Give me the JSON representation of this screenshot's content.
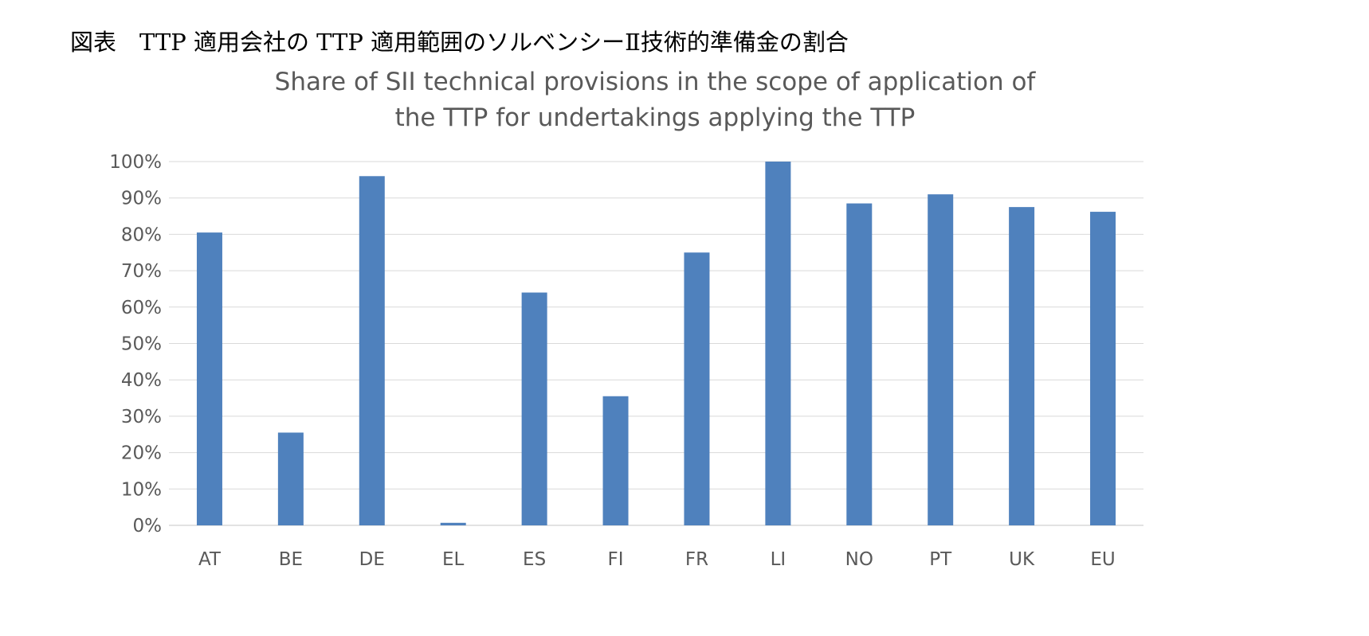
{
  "figure_caption": "図表　TTP 適用会社の TTP 適用範囲のソルベンシーⅡ技術的準備金の割合",
  "chart_data": {
    "type": "bar",
    "title": "Share of SII technical provisions in the scope of application of the TTP for undertakings applying the TTP",
    "title_lines": [
      "Share of SII technical provisions in the scope of application of",
      "the TTP for undertakings applying the TTP"
    ],
    "categories": [
      "AT",
      "BE",
      "DE",
      "EL",
      "ES",
      "FI",
      "FR",
      "LI",
      "NO",
      "PT",
      "UK",
      "EU"
    ],
    "values": [
      0.805,
      0.255,
      0.96,
      0.007,
      0.64,
      0.355,
      0.75,
      1.0,
      0.885,
      0.91,
      0.875,
      0.862
    ],
    "xlabel": "",
    "ylabel": "",
    "ylim": [
      0,
      1
    ],
    "y_ticks": [
      0,
      0.1,
      0.2,
      0.3,
      0.4,
      0.5,
      0.6,
      0.7,
      0.8,
      0.9,
      1.0
    ],
    "y_tick_labels": [
      "0%",
      "10%",
      "20%",
      "30%",
      "40%",
      "50%",
      "60%",
      "70%",
      "80%",
      "90%",
      "100%"
    ],
    "grid": true,
    "legend": "none",
    "bar_color": "#4F81BD",
    "grid_color": "#D9D9D9"
  }
}
